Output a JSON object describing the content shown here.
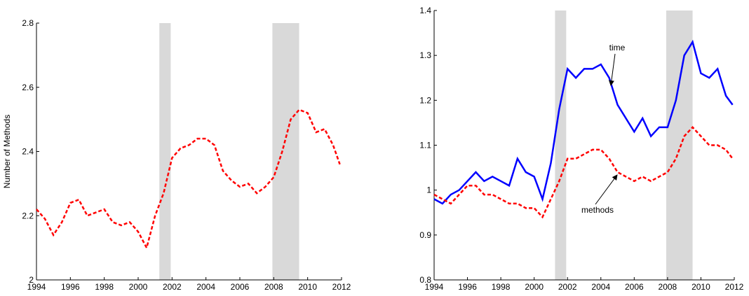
{
  "chart_data": [
    {
      "type": "line",
      "ylabel": "Number of Methods",
      "x": [
        1994,
        1994.5,
        1995,
        1995.5,
        1996,
        1996.5,
        1997,
        1997.5,
        1998,
        1998.5,
        1999,
        1999.5,
        2000,
        2000.5,
        2001,
        2001.5,
        2002,
        2002.5,
        2003,
        2003.5,
        2004,
        2004.5,
        2005,
        2005.5,
        2006,
        2006.5,
        2007,
        2007.5,
        2008,
        2008.5,
        2009,
        2009.5,
        2010,
        2010.5,
        2011,
        2011.5,
        2011.9
      ],
      "series": [
        {
          "color": "#ff0000",
          "dashed": true,
          "values": [
            2.22,
            2.19,
            2.14,
            2.18,
            2.24,
            2.25,
            2.2,
            2.21,
            2.22,
            2.18,
            2.17,
            2.18,
            2.15,
            2.1,
            2.2,
            2.27,
            2.38,
            2.41,
            2.42,
            2.44,
            2.44,
            2.42,
            2.34,
            2.31,
            2.29,
            2.3,
            2.27,
            2.29,
            2.32,
            2.4,
            2.5,
            2.53,
            2.52,
            2.46,
            2.47,
            2.42,
            2.36
          ]
        }
      ],
      "shaded": [
        [
          2001.25,
          2001.92
        ],
        [
          2007.92,
          2009.5
        ]
      ],
      "xlim": [
        1994,
        2012
      ],
      "xticks": [
        1994,
        1996,
        1998,
        2000,
        2002,
        2004,
        2006,
        2008,
        2010,
        2012
      ],
      "ylim": [
        2,
        2.8
      ],
      "yticks": [
        2,
        2.2,
        2.4,
        2.6,
        2.8
      ]
    },
    {
      "type": "line",
      "x": [
        1994,
        1994.5,
        1995,
        1995.5,
        1996,
        1996.5,
        1997,
        1997.5,
        1998,
        1998.5,
        1999,
        1999.5,
        2000,
        2000.5,
        2001,
        2001.5,
        2002,
        2002.5,
        2003,
        2003.5,
        2004,
        2004.5,
        2005,
        2005.5,
        2006,
        2006.5,
        2007,
        2007.5,
        2008,
        2008.5,
        2009,
        2009.5,
        2010,
        2010.5,
        2011,
        2011.5,
        2011.9
      ],
      "series": [
        {
          "name": "time",
          "color": "#0000ff",
          "dashed": false,
          "values": [
            0.98,
            0.97,
            0.99,
            1.0,
            1.02,
            1.04,
            1.02,
            1.03,
            1.02,
            1.01,
            1.07,
            1.04,
            1.03,
            0.98,
            1.06,
            1.18,
            1.27,
            1.25,
            1.27,
            1.27,
            1.28,
            1.25,
            1.19,
            1.16,
            1.13,
            1.16,
            1.12,
            1.14,
            1.14,
            1.2,
            1.3,
            1.33,
            1.26,
            1.25,
            1.27,
            1.21,
            1.19
          ]
        },
        {
          "name": "methods",
          "color": "#ff0000",
          "dashed": true,
          "values": [
            0.99,
            0.98,
            0.97,
            0.99,
            1.01,
            1.01,
            0.99,
            0.99,
            0.98,
            0.97,
            0.97,
            0.96,
            0.96,
            0.94,
            0.98,
            1.02,
            1.07,
            1.07,
            1.08,
            1.09,
            1.09,
            1.07,
            1.04,
            1.03,
            1.02,
            1.03,
            1.02,
            1.03,
            1.04,
            1.07,
            1.12,
            1.14,
            1.12,
            1.1,
            1.1,
            1.09,
            1.07
          ]
        }
      ],
      "shaded": [
        [
          2001.25,
          2001.92
        ],
        [
          2007.92,
          2009.5
        ]
      ],
      "xlim": [
        1994,
        2012
      ],
      "xticks": [
        1994,
        1996,
        1998,
        2000,
        2002,
        2004,
        2006,
        2008,
        2010,
        2012
      ],
      "ylim": [
        0.8,
        1.4
      ],
      "yticks": [
        0.8,
        0.9,
        1,
        1.1,
        1.2,
        1.3,
        1.4
      ]
    }
  ]
}
